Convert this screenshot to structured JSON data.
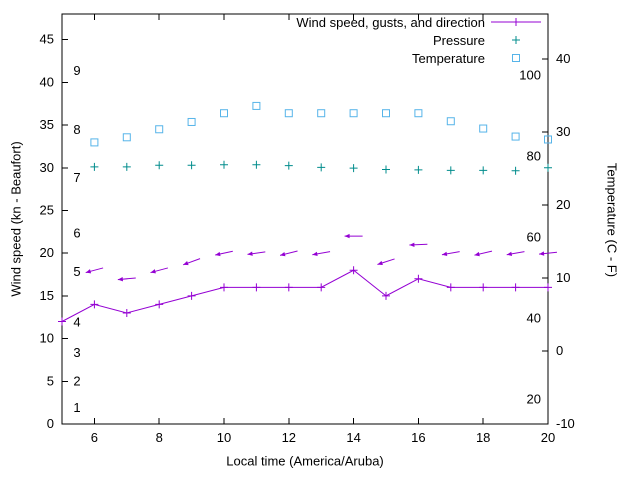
{
  "figure": {
    "xlabel": "Local time (America/Aruba)",
    "ylabel_left": "Wind speed (kn - Beaufort)",
    "ylabel_right": "Temperature (C - F)",
    "background": "#ffffff",
    "legend": [
      {
        "label": "Wind speed, gusts, and direction",
        "marker": "line-plus",
        "color": "#9400d3"
      },
      {
        "label": "Pressure",
        "marker": "plus",
        "color": "#008c8c"
      },
      {
        "label": "Temperature",
        "marker": "square",
        "color": "#56b4e9"
      }
    ]
  },
  "chart_data": {
    "type": "line",
    "title": "",
    "xlabel": "Local time (America/Aruba)",
    "ylabel_left": "Wind speed (kn - Beaufort)",
    "ylabel_right": "Temperature (C - F)",
    "x_range": [
      5,
      20
    ],
    "x_ticks": [
      6,
      8,
      10,
      12,
      14,
      16,
      18,
      20
    ],
    "y_left_range": [
      0,
      48
    ],
    "y_left_ticks": [
      0,
      5,
      10,
      15,
      20,
      25,
      30,
      35,
      40,
      45
    ],
    "y_right_range": [
      -10,
      46.2
    ],
    "y_right_ticks": [
      -10,
      0,
      10,
      20,
      30,
      40
    ],
    "beaufort_scale_labels": [
      {
        "beaufort": "1",
        "kn": 1.9
      },
      {
        "beaufort": "2",
        "kn": 5.0
      },
      {
        "beaufort": "3",
        "kn": 8.3
      },
      {
        "beaufort": "4",
        "kn": 11.9
      },
      {
        "beaufort": "5",
        "kn": 17.8
      },
      {
        "beaufort": "6",
        "kn": 22.3
      },
      {
        "beaufort": "7",
        "kn": 28.8
      },
      {
        "beaufort": "8",
        "kn": 34.4
      },
      {
        "beaufort": "9",
        "kn": 41.3
      }
    ],
    "fahrenheit_scale_labels": [
      20,
      40,
      60,
      80,
      100
    ],
    "series": [
      {
        "name": "Wind speed (kn)",
        "axis": "left",
        "style": "line-plus",
        "color": "#9400d3",
        "x": [
          5,
          6,
          7,
          8,
          9,
          10,
          11,
          12,
          13,
          14,
          15,
          16,
          17,
          18,
          19,
          20
        ],
        "y": [
          12,
          14,
          13,
          14,
          15,
          16,
          16,
          16,
          16,
          18,
          15,
          17,
          16,
          16,
          16,
          16
        ]
      },
      {
        "name": "Wind gusts and direction (kn)",
        "axis": "left",
        "style": "arrows",
        "color": "#9400d3",
        "x": [
          6,
          7,
          8,
          9,
          10,
          11,
          12,
          13,
          14,
          15,
          16,
          17,
          18,
          19,
          20
        ],
        "y": [
          18,
          17,
          18,
          19,
          20,
          20,
          20,
          20,
          22,
          19,
          21,
          20,
          20,
          20,
          20
        ],
        "angles_deg": [
          195,
          185,
          195,
          200,
          192,
          188,
          194,
          190,
          180,
          198,
          182,
          190,
          193,
          190,
          186
        ]
      },
      {
        "name": "Pressure",
        "axis": "left",
        "style": "plus",
        "color": "#008c8c",
        "x": [
          6,
          7,
          8,
          9,
          10,
          11,
          12,
          13,
          14,
          15,
          16,
          17,
          18,
          19,
          20
        ],
        "y": [
          30.1,
          30.1,
          30.3,
          30.3,
          30.35,
          30.35,
          30.25,
          30.05,
          29.95,
          29.8,
          29.75,
          29.7,
          29.7,
          29.65,
          30.0
        ]
      },
      {
        "name": "Temperature (C)",
        "axis": "right",
        "style": "square",
        "color": "#56b4e9",
        "x": [
          6,
          7,
          8,
          9,
          10,
          11,
          12,
          13,
          14,
          15,
          16,
          17,
          18,
          19,
          20
        ],
        "y": [
          28.6,
          29.3,
          30.4,
          31.4,
          32.6,
          33.6,
          32.6,
          32.6,
          32.6,
          32.6,
          32.6,
          31.5,
          30.5,
          29.4,
          29.0
        ]
      }
    ]
  }
}
